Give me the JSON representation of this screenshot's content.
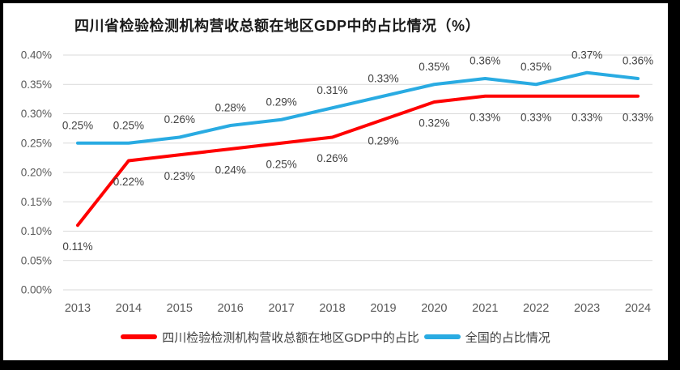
{
  "chart_data": {
    "type": "line",
    "title": "四川省检验检测机构营收总额在地区GDP中的占比情况（%）",
    "categories": [
      "2013",
      "2014",
      "2015",
      "2016",
      "2017",
      "2018",
      "2019",
      "2020",
      "2021",
      "2022",
      "2023",
      "2024"
    ],
    "series": [
      {
        "id": "sichuan",
        "name": "四川检验检测机构营收总额在地区GDP中的占比",
        "color": "#FF0000",
        "values": [
          0.11,
          0.22,
          0.23,
          0.24,
          0.25,
          0.26,
          0.29,
          0.32,
          0.33,
          0.33,
          0.33,
          0.33
        ],
        "point_labels": [
          "0.11%",
          "0.22%",
          "0.23%",
          "0.24%",
          "0.25%",
          "0.26%",
          "0.29%",
          "0.32%",
          "0.33%",
          "0.33%",
          "0.33%",
          "0.33%"
        ],
        "label_position": "below"
      },
      {
        "id": "national",
        "name": "全国的占比情况",
        "color": "#29ABE2",
        "values": [
          0.25,
          0.25,
          0.26,
          0.28,
          0.29,
          0.31,
          0.33,
          0.35,
          0.36,
          0.35,
          0.37,
          0.36
        ],
        "point_labels": [
          "0.25%",
          "0.25%",
          "0.26%",
          "0.28%",
          "0.29%",
          "0.31%",
          "0.33%",
          "0.35%",
          "0.36%",
          "0.35%",
          "0.37%",
          "0.36%"
        ],
        "label_position": "above"
      }
    ],
    "y_axis": {
      "ticks": [
        "0.40%",
        "0.35%",
        "0.30%",
        "0.25%",
        "0.20%",
        "0.15%",
        "0.10%",
        "0.05%",
        "0.00%"
      ],
      "min": 0,
      "max": 0.4
    },
    "grid": true,
    "grid_color": "#D9D9D9",
    "axis_text_color": "#595959",
    "data_label_color": "#404040",
    "legend_position": "bottom"
  }
}
